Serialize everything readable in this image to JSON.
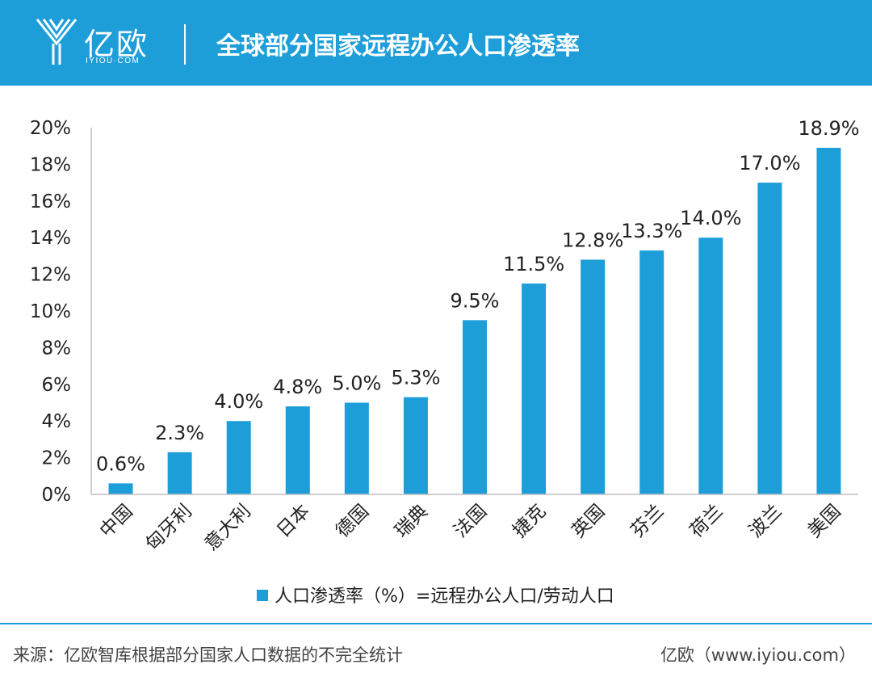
{
  "header": {
    "logo_text": "亿欧",
    "logo_sub": "IYIOU·COM",
    "title": "全球部分国家远程办公人口渗透率"
  },
  "colors": {
    "accent": "#1d9ed9",
    "bar": "#1d9ed9",
    "axis": "#bfbfbf"
  },
  "chart_data": {
    "type": "bar",
    "title": "全球部分国家远程办公人口渗透率",
    "categories": [
      "中国",
      "匈牙利",
      "意大利",
      "日本",
      "德国",
      "瑞典",
      "法国",
      "捷克",
      "英国",
      "芬兰",
      "荷兰",
      "波兰",
      "美国"
    ],
    "series": [
      {
        "name": "人口渗透率（%）=远程办公人口/劳动人口",
        "values": [
          0.6,
          2.3,
          4.0,
          4.8,
          5.0,
          5.3,
          9.5,
          11.5,
          12.8,
          13.3,
          14.0,
          17.0,
          18.9
        ]
      }
    ],
    "data_labels": [
      "0.6%",
      "2.3%",
      "4.0%",
      "4.8%",
      "5.0%",
      "5.3%",
      "9.5%",
      "11.5%",
      "12.8%",
      "13.3%",
      "14.0%",
      "17.0%",
      "18.9%"
    ],
    "yticks": [
      0,
      2,
      4,
      6,
      8,
      10,
      12,
      14,
      16,
      18,
      20
    ],
    "ytick_labels": [
      "0%",
      "2%",
      "4%",
      "6%",
      "8%",
      "10%",
      "12%",
      "14%",
      "16%",
      "18%",
      "20%"
    ],
    "ylim": [
      0,
      20
    ],
    "grid": false,
    "legend_position": "bottom"
  },
  "footer": {
    "source": "来源：亿欧智库根据部分国家人口数据的不完全统计",
    "credit": "亿欧（www.iyiou.com）"
  }
}
